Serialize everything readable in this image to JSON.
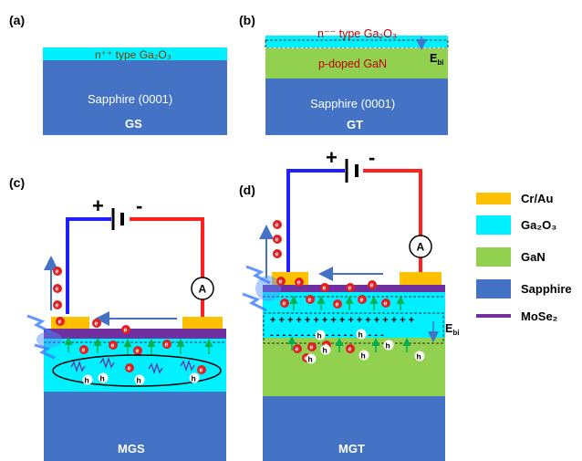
{
  "panels": {
    "a": {
      "label": "(a)",
      "layer_top": "n⁺⁺ type Ga₂O₃",
      "layer_substrate": "Sapphire (0001)",
      "device": "GS"
    },
    "b": {
      "label": "(b)",
      "layer_top": "n⁻⁻ type Ga₂O₃",
      "layer_mid": "p-doped GaN",
      "layer_substrate": "Sapphire (0001)",
      "device": "GT",
      "field": "E",
      "field_sub": "bi"
    },
    "c": {
      "label": "(c)",
      "device": "MGS",
      "plus": "+",
      "minus": "-",
      "ammeter": "A",
      "electron": "e",
      "hole": "h"
    },
    "d": {
      "label": "(d)",
      "device": "MGT",
      "plus": "+",
      "minus": "-",
      "ammeter": "A",
      "field": "E",
      "field_sub": "bi",
      "electron": "e",
      "hole": "h"
    }
  },
  "legend": [
    {
      "label": "Cr/Au",
      "color": "#ffc000"
    },
    {
      "label": "Ga₂O₃",
      "color": "#00f0ff"
    },
    {
      "label": "GaN",
      "color": "#92d050"
    },
    {
      "label": "Sapphire",
      "color": "#4472c4"
    },
    {
      "label": "MoSe₂",
      "color": "#7030a0"
    }
  ],
  "colors": {
    "sapphire": "#4472c4",
    "ga2o3": "#00f0ff",
    "gan": "#92d050",
    "electrode": "#ffc000",
    "mose2": "#7030a0",
    "wire_positive": "#1f1fff",
    "wire_negative": "#ff2020",
    "electron": "#e02020",
    "arrow_green": "#00b050",
    "arrow_blue": "#4472c4"
  }
}
